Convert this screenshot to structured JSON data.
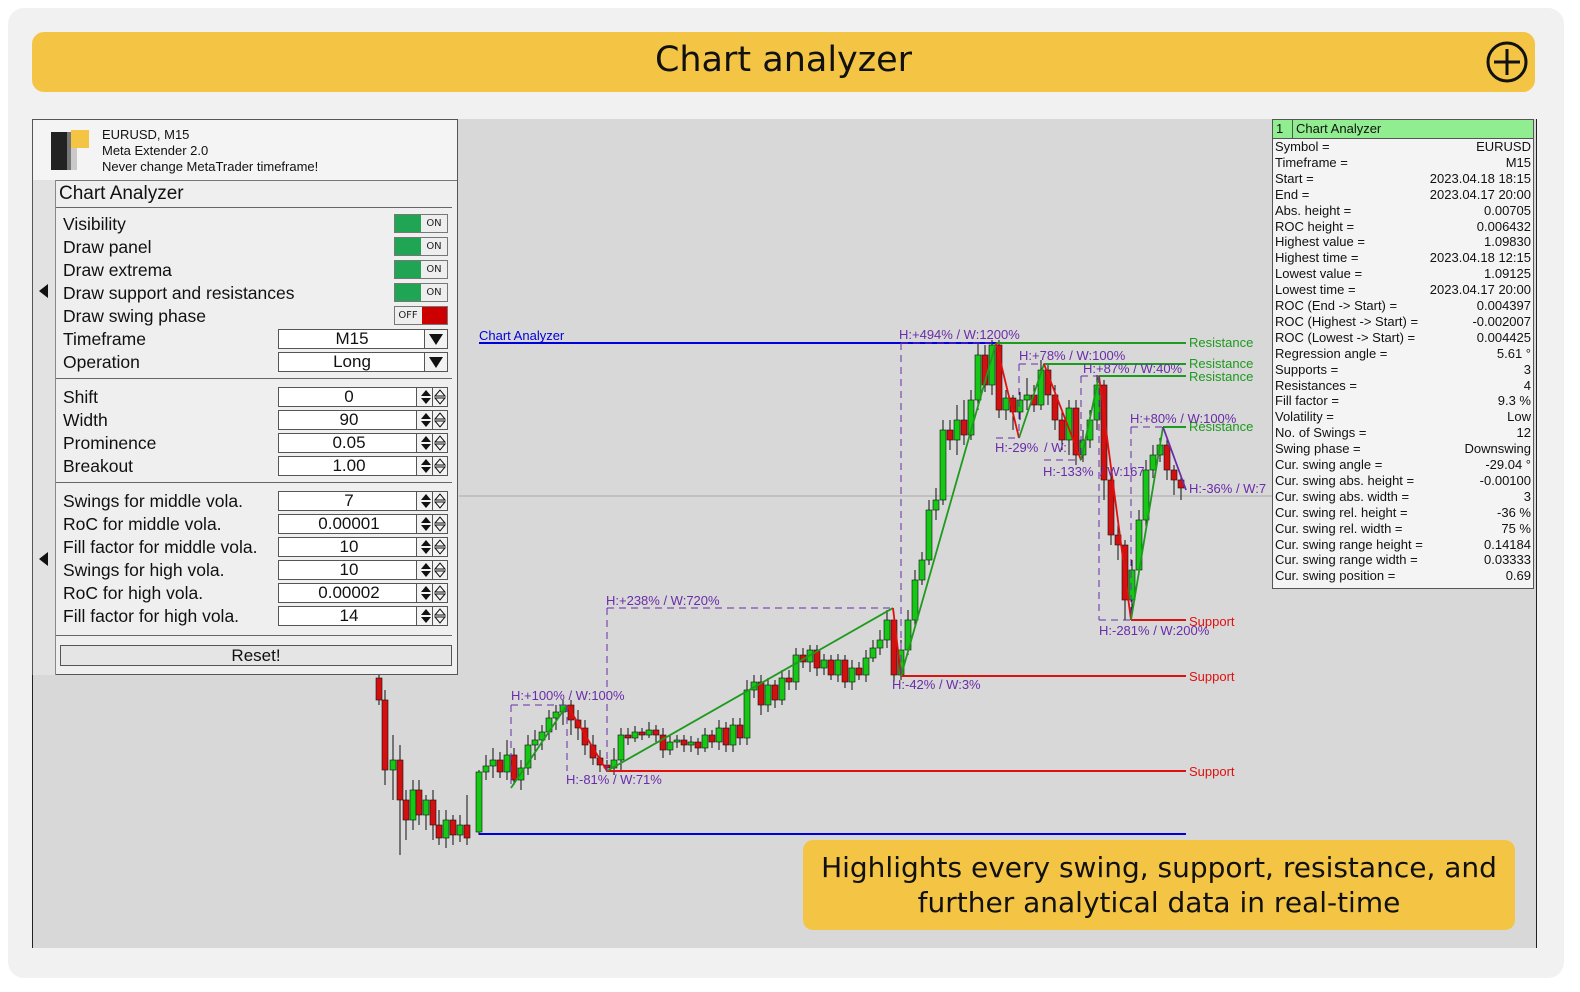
{
  "page": {
    "title": "Chart analyzer",
    "banner_line1": "Highlights every swing, support, resistance, and",
    "banner_line2": "further analytical data in real-time"
  },
  "header": {
    "symbol_line": "EURUSD, M15",
    "app_line": "Meta Extender 2.0",
    "warn_line": "Never change MetaTrader timeframe!"
  },
  "panel": {
    "title": "Chart Analyzer",
    "toggles": [
      {
        "label": "Visibility",
        "state": "ON"
      },
      {
        "label": "Draw panel",
        "state": "ON"
      },
      {
        "label": "Draw extrema",
        "state": "ON"
      },
      {
        "label": "Draw support and resistances",
        "state": "ON"
      },
      {
        "label": "Draw swing phase",
        "state": "OFF"
      }
    ],
    "selects": [
      {
        "label": "Timeframe",
        "value": "M15"
      },
      {
        "label": "Operation",
        "value": "Long"
      }
    ],
    "params1": [
      {
        "label": "Shift",
        "value": "0"
      },
      {
        "label": "Width",
        "value": "90"
      },
      {
        "label": "Prominence",
        "value": "0.05"
      },
      {
        "label": "Breakout",
        "value": "1.00"
      }
    ],
    "params2": [
      {
        "label": "Swings for middle vola.",
        "value": "7"
      },
      {
        "label": "RoC for middle vola.",
        "value": "0.00001"
      },
      {
        "label": "Fill factor for middle vola.",
        "value": "10"
      },
      {
        "label": "Swings for high vola.",
        "value": "10"
      },
      {
        "label": "RoC for high vola.",
        "value": "0.00002"
      },
      {
        "label": "Fill factor for high vola.",
        "value": "14"
      }
    ],
    "reset_label": "Reset!"
  },
  "info": {
    "num": "1",
    "title": "Chart Analyzer",
    "rows": [
      {
        "k": "Symbol =",
        "v": "EURUSD"
      },
      {
        "k": "Timeframe =",
        "v": "M15"
      },
      {
        "k": "Start =",
        "v": "2023.04.18 18:15"
      },
      {
        "k": "End =",
        "v": "2023.04.17 20:00"
      },
      {
        "k": "Abs. height =",
        "v": "0.00705"
      },
      {
        "k": "ROC height =",
        "v": "0.006432"
      },
      {
        "k": "Highest value =",
        "v": "1.09830"
      },
      {
        "k": "Highest time =",
        "v": "2023.04.18 12:15"
      },
      {
        "k": "Lowest value =",
        "v": "1.09125"
      },
      {
        "k": "Lowest time =",
        "v": "2023.04.17 20:00"
      },
      {
        "k": "ROC (End -> Start) =",
        "v": "0.004397"
      },
      {
        "k": "ROC (Highest -> Start) =",
        "v": "-0.002007"
      },
      {
        "k": "ROC (Lowest -> Start) =",
        "v": "0.004425"
      },
      {
        "k": "Regression angle =",
        "v": "5.61 °"
      },
      {
        "k": "Supports =",
        "v": "3"
      },
      {
        "k": "Resistances =",
        "v": "4"
      },
      {
        "k": "Fill factor =",
        "v": "9.3 %"
      },
      {
        "k": "Volatility =",
        "v": "Low"
      },
      {
        "k": "No. of Swings =",
        "v": "12"
      },
      {
        "k": "Swing phase =",
        "v": "Downswing"
      },
      {
        "k": "Cur. swing angle =",
        "v": "-29.04 °"
      },
      {
        "k": "Cur. swing abs. height =",
        "v": "-0.00100"
      },
      {
        "k": "Cur. swing abs. width =",
        "v": "3"
      },
      {
        "k": "Cur. swing rel. height =",
        "v": "-36 %"
      },
      {
        "k": "Cur. swing rel. width =",
        "v": "75 %"
      },
      {
        "k": "Cur. swing range height =",
        "v": "0.14184"
      },
      {
        "k": "Cur. swing range width =",
        "v": "0.03333"
      },
      {
        "k": "Cur. swing position =",
        "v": "0.69"
      }
    ]
  },
  "chart": {
    "indicator_label": "Chart Analyzer",
    "resistance_label": "Resistance",
    "support_label": "Support",
    "swing_labels": [
      "H:+494% / W:1200%",
      "H:+78% / W:100%",
      "H:+87% / W:40%",
      "H:+80% / W:100%",
      "H:-29%",
      "/ W:",
      "H:-133%",
      "/ W:167",
      "H:-36% / W:7",
      "H:-281% / W:200%",
      "H:+238% / W:720%",
      "H:-42% / W:3%",
      "H:+100% / W:100%",
      "H:-81% / W:71%"
    ],
    "colors": {
      "resistance": "#1e9a1e",
      "support": "#e01010",
      "blue": "#0000dd",
      "swing": "#6a2ca8",
      "bull": "#16c716",
      "bear": "#d21010"
    }
  }
}
